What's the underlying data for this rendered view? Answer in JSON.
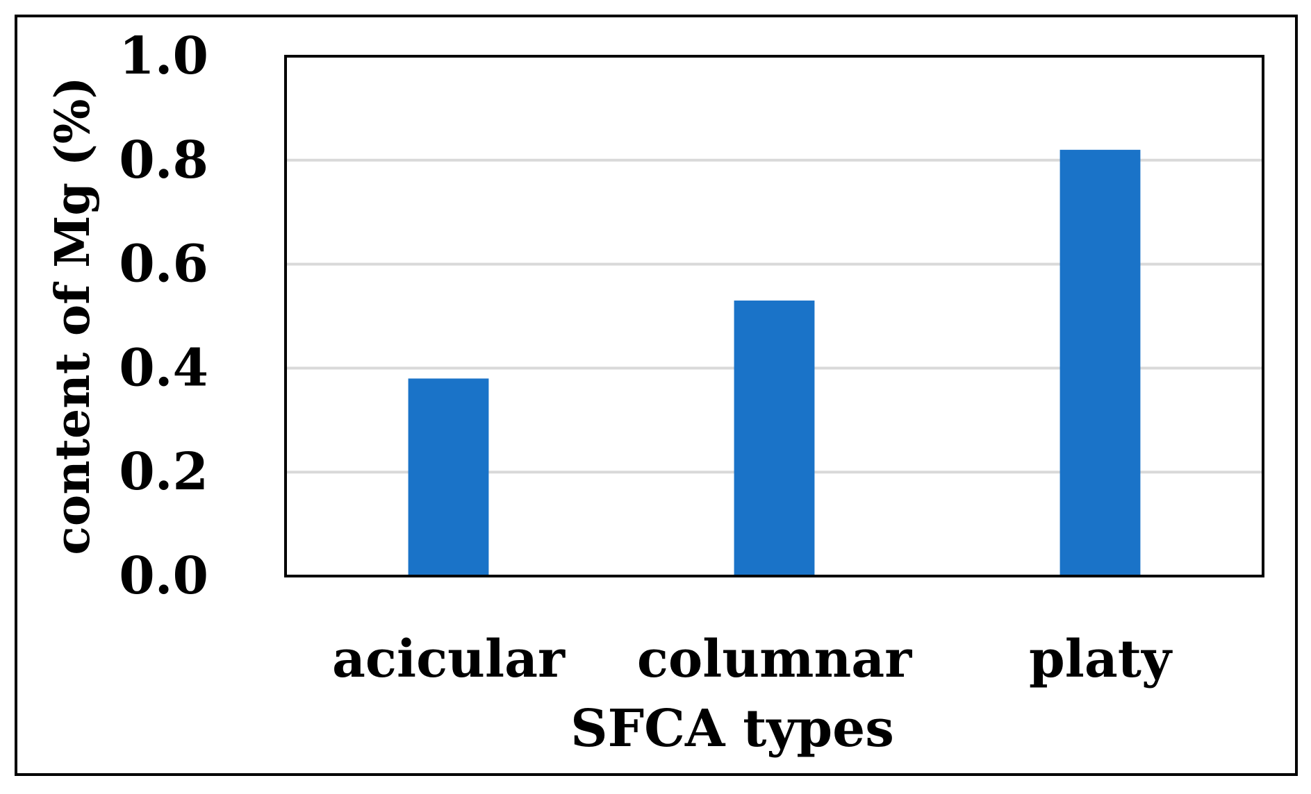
{
  "chart_data": {
    "type": "bar",
    "categories": [
      "acicular",
      "columnar",
      "platy"
    ],
    "values": [
      0.38,
      0.53,
      0.82
    ],
    "title": "",
    "xlabel": "SFCA types",
    "ylabel": "content of Mg (%)",
    "ylim": [
      0,
      1.0
    ],
    "yticks": [
      "0.0",
      "0.2",
      "0.4",
      "0.6",
      "0.8",
      "1.0"
    ],
    "grid": true,
    "legend": "none",
    "bar_color": "#1a73c8",
    "grid_color": "#d9d9d9"
  }
}
